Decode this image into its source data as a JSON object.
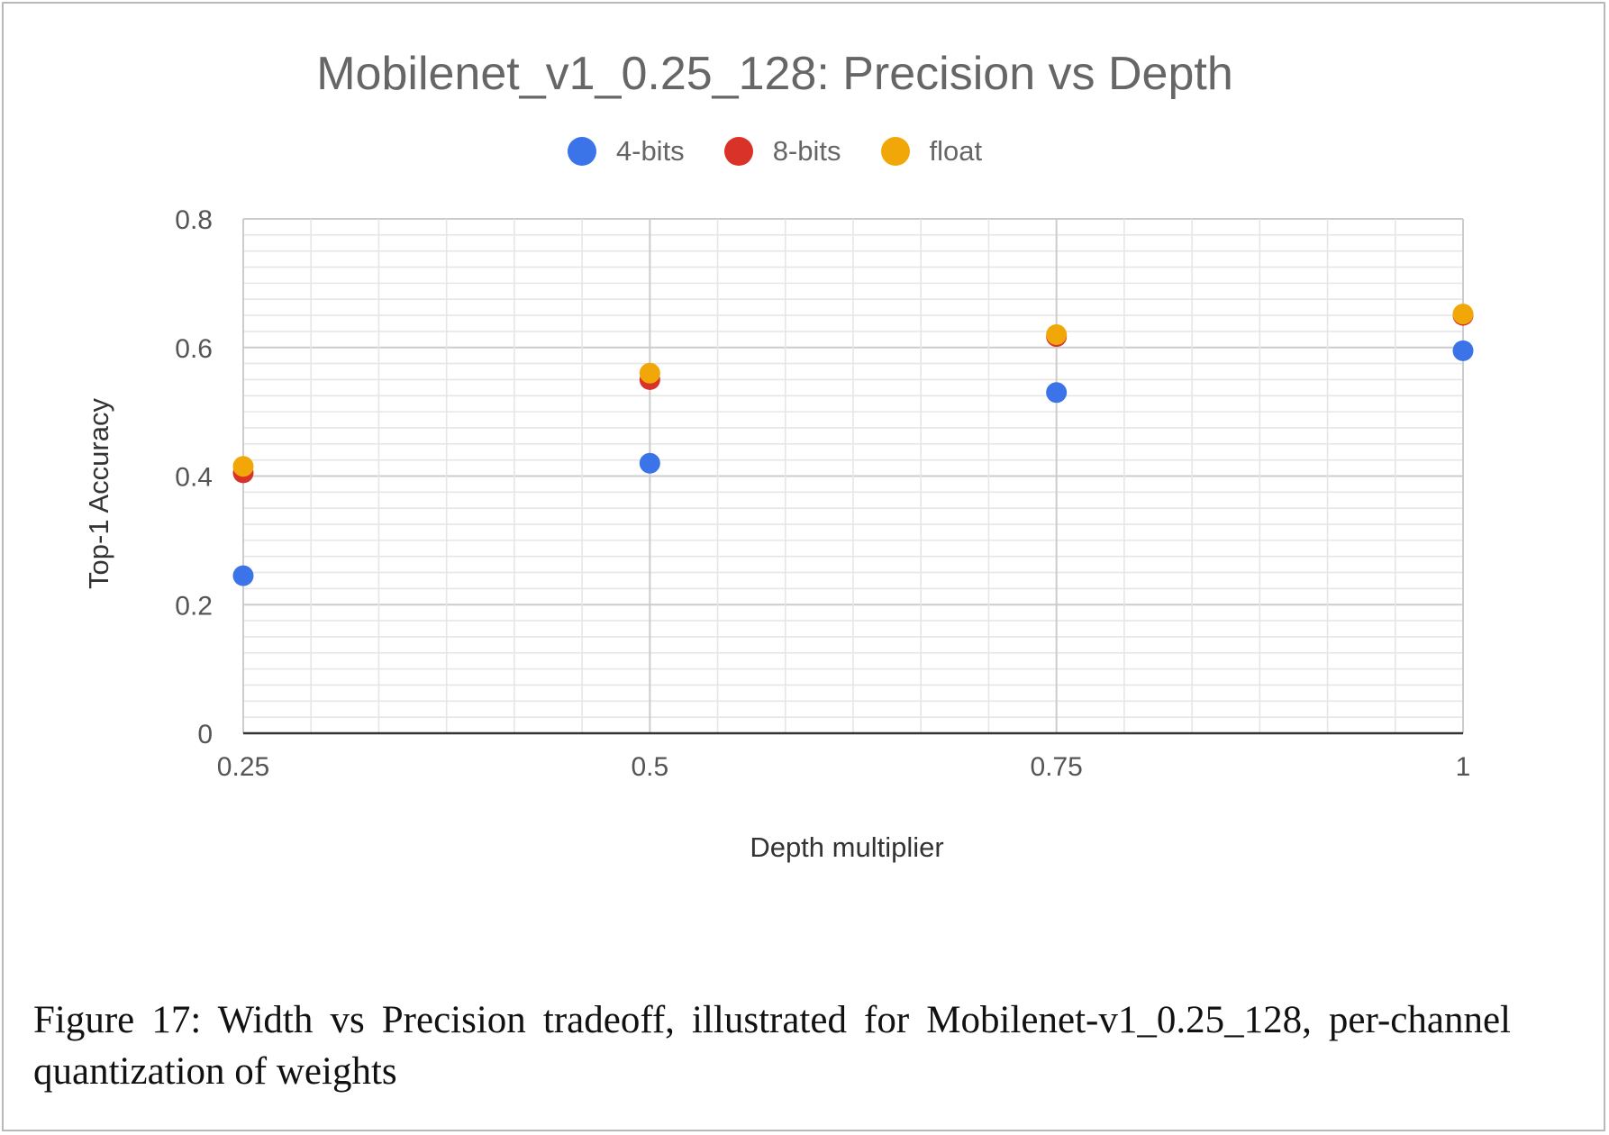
{
  "chart_data": {
    "type": "scatter",
    "title": "Mobilenet_v1_0.25_128: Precision vs Depth",
    "xlabel": "Depth multiplier",
    "ylabel": "Top-1 Accuracy",
    "xlim": [
      0.25,
      1
    ],
    "ylim": [
      0,
      0.8
    ],
    "x_ticks": [
      "0.25",
      "0.5",
      "0.75",
      "1"
    ],
    "y_ticks": [
      "0",
      "0.2",
      "0.4",
      "0.6",
      "0.8"
    ],
    "x": [
      0.25,
      0.5,
      0.75,
      1
    ],
    "grid": true,
    "legend_position": "top",
    "series": [
      {
        "name": "4-bits",
        "color": "#3b73e8",
        "values": [
          0.245,
          0.42,
          0.53,
          0.595
        ]
      },
      {
        "name": "8-bits",
        "color": "#d93228",
        "values": [
          0.405,
          0.55,
          0.617,
          0.65
        ]
      },
      {
        "name": "float",
        "color": "#f2a708",
        "values": [
          0.415,
          0.56,
          0.62,
          0.652
        ]
      }
    ]
  },
  "caption": "Figure 17:  Width vs Precision tradeoff, illustrated for Mobilenet-v1_0.25_128, per-channel quantization of weights"
}
